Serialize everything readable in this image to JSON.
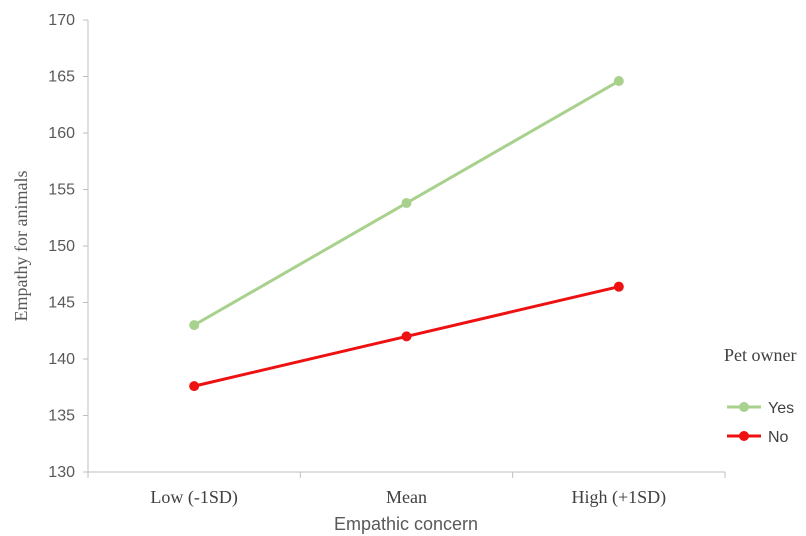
{
  "chart_data": {
    "type": "line",
    "categories": [
      "Low (-1SD)",
      "Mean",
      "High (+1SD)"
    ],
    "series": [
      {
        "name": "Yes",
        "values": [
          143.0,
          153.8,
          164.6
        ],
        "color": "#a9d18e"
      },
      {
        "name": "No",
        "values": [
          137.6,
          142.0,
          146.4
        ],
        "color": "#ee1111"
      }
    ],
    "xlabel": "Empathic concern",
    "ylabel": "Empathy for animals",
    "ylim": [
      130,
      170
    ],
    "yticks": [
      130,
      135,
      140,
      145,
      150,
      155,
      160,
      165,
      170
    ],
    "grid": false,
    "legend": {
      "title": "Pet owner",
      "position": "right"
    }
  }
}
